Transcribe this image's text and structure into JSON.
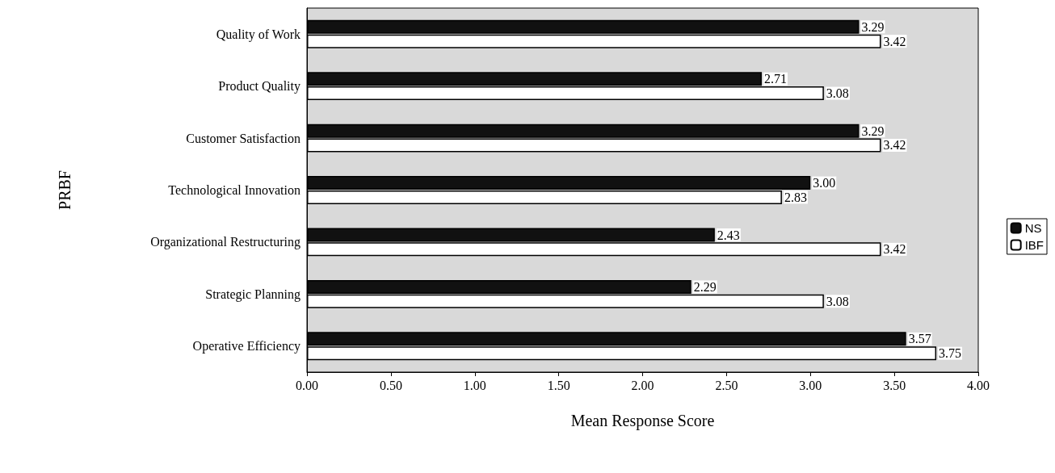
{
  "chart_data": {
    "type": "bar",
    "orientation": "horizontal",
    "xlabel": "Mean Response Score",
    "ylabel": "PRBF",
    "categories": [
      "Quality of Work",
      "Product Quality",
      "Customer Satisfaction",
      "Technological Innovation",
      "Organizational Restructuring",
      "Strategic Planning",
      "Operative Efficiency"
    ],
    "series": [
      {
        "name": "NS",
        "color": "#111111",
        "values": [
          3.29,
          2.71,
          3.29,
          3.0,
          2.43,
          2.29,
          3.57
        ],
        "value_labels": [
          "3.29",
          "2.71",
          "3.29",
          "3.00",
          "2.43",
          "2.29",
          "3.57"
        ]
      },
      {
        "name": "IBF",
        "color": "#ffffff",
        "values": [
          3.42,
          3.08,
          3.42,
          2.83,
          3.42,
          3.08,
          3.75
        ],
        "value_labels": [
          "3.42",
          "3.08",
          "3.42",
          "2.83",
          "3.42",
          "3.08",
          "3.75"
        ]
      }
    ],
    "xlim": [
      0,
      4
    ],
    "xticks": [
      {
        "value": 0,
        "label": "0.00"
      },
      {
        "value": 0.5,
        "label": "0.50"
      },
      {
        "value": 1,
        "label": "1.00"
      },
      {
        "value": 1.5,
        "label": "1.50"
      },
      {
        "value": 2,
        "label": "2.00"
      },
      {
        "value": 2.5,
        "label": "2.50"
      },
      {
        "value": 3,
        "label": "3.00"
      },
      {
        "value": 3.5,
        "label": "3.50"
      },
      {
        "value": 4,
        "label": "4.00"
      }
    ],
    "legend": "right"
  }
}
